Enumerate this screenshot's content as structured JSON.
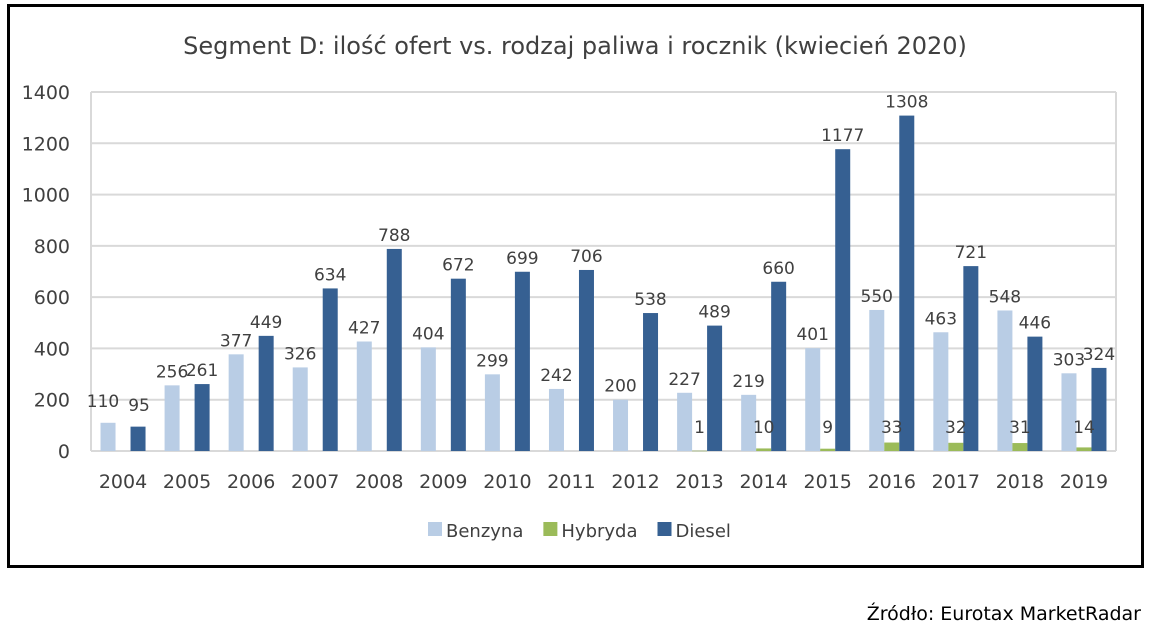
{
  "chart_data": {
    "type": "bar",
    "title": "Segment D: ilość ofert vs. rodzaj paliwa i rocznik (kwiecień 2020)",
    "xlabel": "",
    "ylabel": "",
    "ylim": [
      0,
      1400
    ],
    "yticks": [
      "0",
      "200",
      "400",
      "600",
      "800",
      "1000",
      "1200",
      "1400"
    ],
    "grid": true,
    "legend_position": "bottom",
    "categories": [
      "2004",
      "2005",
      "2006",
      "2007",
      "2008",
      "2009",
      "2010",
      "2011",
      "2012",
      "2013",
      "2014",
      "2015",
      "2016",
      "2017",
      "2018",
      "2019"
    ],
    "series": [
      {
        "name": "Benzyna",
        "color": "#B9CDE5",
        "values": [
          110,
          256,
          377,
          326,
          427,
          404,
          299,
          242,
          200,
          227,
          219,
          401,
          550,
          463,
          548,
          303
        ]
      },
      {
        "name": "Hybryda",
        "color": "#9BBB59",
        "values": [
          null,
          null,
          null,
          null,
          null,
          null,
          null,
          null,
          null,
          1,
          10,
          9,
          33,
          32,
          31,
          14
        ]
      },
      {
        "name": "Diesel",
        "color": "#366092",
        "values": [
          95,
          261,
          449,
          634,
          788,
          672,
          699,
          706,
          538,
          489,
          660,
          1177,
          1308,
          721,
          446,
          324
        ]
      }
    ]
  },
  "source": "Źródło: Eurotax MarketRadar"
}
